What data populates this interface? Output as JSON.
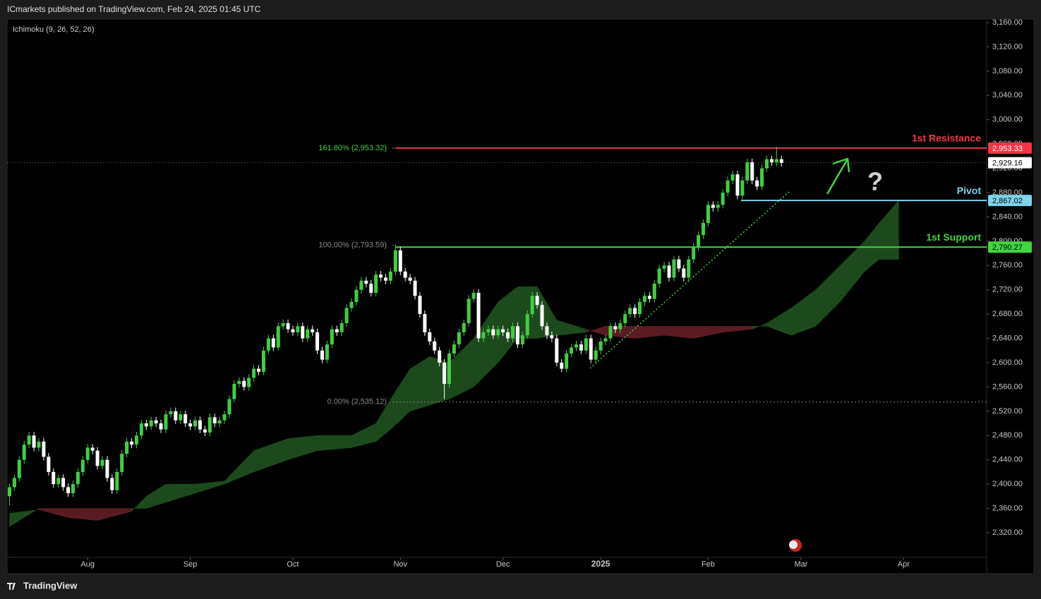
{
  "header": {
    "publisher": "ICmarkets published on TradingView.com, Feb 24, 2025 01:45 UTC",
    "brand": "TradingView"
  },
  "chart_data": {
    "type": "candlestick",
    "indicator": "Ichimoku (9, 26, 52, 26)",
    "up_color": "#3fcf3f",
    "down_color": "#ffffff",
    "open": [
      2380,
      2395,
      2410,
      2440,
      2465,
      2480,
      2460,
      2470,
      2445,
      2420,
      2400,
      2410,
      2395,
      2385,
      2400,
      2420,
      2440,
      2460,
      2455,
      2430,
      2440,
      2410,
      2390,
      2420,
      2450,
      2470,
      2465,
      2480,
      2500,
      2495,
      2505,
      2500,
      2490,
      2515,
      2520,
      2505,
      2515,
      2500,
      2495,
      2505,
      2490,
      2485,
      2510,
      2500,
      2505,
      2515,
      2540,
      2565,
      2570,
      2560,
      2575,
      2590,
      2585,
      2620,
      2640,
      2625,
      2660,
      2665,
      2655,
      2650,
      2660,
      2640,
      2655,
      2650,
      2620,
      2605,
      2630,
      2655,
      2650,
      2665,
      2690,
      2700,
      2720,
      2735,
      2730,
      2715,
      2745,
      2740,
      2735,
      2750,
      2785,
      2750,
      2740,
      2735,
      2710,
      2680,
      2650,
      2635,
      2620,
      2600,
      2565,
      2615,
      2630,
      2650,
      2665,
      2705,
      2715,
      2640,
      2650,
      2655,
      2645,
      2655,
      2650,
      2640,
      2660,
      2630,
      2645,
      2680,
      2710,
      2695,
      2660,
      2645,
      2640,
      2600,
      2590,
      2615,
      2625,
      2630,
      2620,
      2640,
      2605,
      2620,
      2635,
      2640,
      2660,
      2655,
      2665,
      2680,
      2690,
      2680,
      2700,
      2710,
      2705,
      2730,
      2755,
      2760,
      2740,
      2770,
      2755,
      2740,
      2770,
      2790,
      2810,
      2830,
      2860,
      2855,
      2860,
      2880,
      2900,
      2910,
      2875,
      2900,
      2930,
      2900,
      2890,
      2920,
      2935,
      2930,
      2935
    ],
    "high": [
      2401,
      2416,
      2446,
      2471,
      2486,
      2486,
      2476,
      2476,
      2451,
      2426,
      2416,
      2416,
      2401,
      2406,
      2426,
      2446,
      2466,
      2466,
      2461,
      2446,
      2446,
      2416,
      2426,
      2456,
      2476,
      2476,
      2486,
      2506,
      2506,
      2511,
      2511,
      2506,
      2521,
      2526,
      2526,
      2521,
      2521,
      2506,
      2511,
      2511,
      2496,
      2516,
      2516,
      2511,
      2521,
      2546,
      2571,
      2576,
      2576,
      2581,
      2596,
      2596,
      2626,
      2646,
      2646,
      2666,
      2671,
      2671,
      2661,
      2666,
      2666,
      2661,
      2661,
      2656,
      2626,
      2636,
      2661,
      2661,
      2671,
      2696,
      2706,
      2726,
      2741,
      2741,
      2736,
      2751,
      2751,
      2746,
      2756,
      2795,
      2791,
      2756,
      2746,
      2741,
      2716,
      2686,
      2656,
      2641,
      2626,
      2606,
      2621,
      2636,
      2656,
      2671,
      2711,
      2721,
      2721,
      2656,
      2661,
      2661,
      2661,
      2661,
      2656,
      2666,
      2666,
      2651,
      2686,
      2716,
      2716,
      2701,
      2666,
      2651,
      2646,
      2606,
      2621,
      2631,
      2636,
      2636,
      2646,
      2646,
      2626,
      2641,
      2646,
      2666,
      2666,
      2671,
      2686,
      2696,
      2696,
      2706,
      2716,
      2716,
      2736,
      2761,
      2766,
      2766,
      2776,
      2776,
      2761,
      2776,
      2796,
      2816,
      2836,
      2866,
      2866,
      2866,
      2886,
      2906,
      2916,
      2916,
      2906,
      2936,
      2936,
      2906,
      2926,
      2941,
      2941,
      2955,
      2941
    ],
    "low": [
      2365,
      2389,
      2404,
      2434,
      2459,
      2454,
      2454,
      2439,
      2414,
      2394,
      2394,
      2389,
      2379,
      2379,
      2394,
      2414,
      2434,
      2449,
      2424,
      2424,
      2404,
      2384,
      2384,
      2414,
      2444,
      2459,
      2459,
      2474,
      2489,
      2489,
      2494,
      2484,
      2484,
      2509,
      2499,
      2499,
      2494,
      2489,
      2489,
      2484,
      2479,
      2479,
      2494,
      2494,
      2499,
      2509,
      2534,
      2559,
      2554,
      2554,
      2569,
      2579,
      2579,
      2614,
      2619,
      2619,
      2654,
      2649,
      2644,
      2644,
      2634,
      2634,
      2644,
      2614,
      2599,
      2599,
      2624,
      2644,
      2644,
      2659,
      2684,
      2694,
      2714,
      2724,
      2709,
      2709,
      2734,
      2729,
      2729,
      2744,
      2744,
      2734,
      2729,
      2704,
      2674,
      2644,
      2629,
      2614,
      2594,
      2540,
      2559,
      2609,
      2624,
      2644,
      2659,
      2699,
      2634,
      2634,
      2644,
      2639,
      2639,
      2644,
      2634,
      2634,
      2624,
      2624,
      2639,
      2674,
      2689,
      2654,
      2639,
      2634,
      2594,
      2584,
      2584,
      2609,
      2619,
      2614,
      2614,
      2599,
      2599,
      2614,
      2629,
      2634,
      2649,
      2649,
      2659,
      2674,
      2674,
      2674,
      2694,
      2699,
      2699,
      2724,
      2749,
      2734,
      2734,
      2749,
      2734,
      2734,
      2764,
      2784,
      2804,
      2824,
      2849,
      2849,
      2854,
      2874,
      2894,
      2869,
      2869,
      2894,
      2894,
      2884,
      2884,
      2914,
      2924,
      2924,
      2923
    ],
    "close": [
      2395,
      2410,
      2440,
      2465,
      2480,
      2460,
      2470,
      2445,
      2420,
      2400,
      2410,
      2395,
      2385,
      2400,
      2420,
      2440,
      2460,
      2455,
      2430,
      2440,
      2410,
      2390,
      2420,
      2450,
      2470,
      2465,
      2480,
      2500,
      2495,
      2505,
      2500,
      2490,
      2515,
      2520,
      2505,
      2515,
      2500,
      2495,
      2505,
      2490,
      2485,
      2510,
      2500,
      2505,
      2515,
      2540,
      2565,
      2570,
      2560,
      2575,
      2590,
      2585,
      2620,
      2640,
      2625,
      2660,
      2665,
      2655,
      2650,
      2660,
      2640,
      2655,
      2650,
      2620,
      2605,
      2630,
      2655,
      2650,
      2665,
      2690,
      2700,
      2720,
      2735,
      2730,
      2715,
      2745,
      2740,
      2735,
      2750,
      2785,
      2750,
      2740,
      2735,
      2710,
      2680,
      2650,
      2635,
      2620,
      2600,
      2565,
      2615,
      2630,
      2650,
      2665,
      2705,
      2715,
      2640,
      2650,
      2655,
      2645,
      2655,
      2650,
      2640,
      2660,
      2630,
      2645,
      2680,
      2710,
      2695,
      2660,
      2645,
      2640,
      2600,
      2590,
      2615,
      2625,
      2630,
      2620,
      2640,
      2605,
      2620,
      2635,
      2640,
      2660,
      2655,
      2665,
      2680,
      2690,
      2680,
      2700,
      2710,
      2705,
      2730,
      2755,
      2760,
      2740,
      2770,
      2755,
      2740,
      2770,
      2790,
      2810,
      2830,
      2860,
      2855,
      2860,
      2880,
      2900,
      2910,
      2875,
      2900,
      2930,
      2900,
      2890,
      2920,
      2935,
      2930,
      2935,
      2929
    ],
    "ichimoku": {
      "x": [
        0,
        6,
        12,
        18,
        25,
        28,
        32,
        38,
        44,
        50,
        57,
        63,
        70,
        75,
        78,
        82,
        86,
        90,
        95,
        100,
        104,
        108,
        112,
        118,
        122,
        128,
        134,
        140,
        146,
        152,
        155,
        160,
        165,
        170,
        175,
        178,
        182
      ],
      "span_a": [
        2352,
        2358,
        2345,
        2340,
        2355,
        2380,
        2400,
        2400,
        2405,
        2455,
        2475,
        2480,
        2480,
        2500,
        2540,
        2590,
        2610,
        2600,
        2640,
        2700,
        2725,
        2725,
        2670,
        2655,
        2645,
        2640,
        2645,
        2640,
        2650,
        2655,
        2665,
        2690,
        2720,
        2760,
        2800,
        2830,
        2867
      ],
      "span_b": [
        2330,
        2360,
        2360,
        2360,
        2360,
        2360,
        2370,
        2385,
        2400,
        2420,
        2440,
        2455,
        2460,
        2470,
        2490,
        2520,
        2530,
        2540,
        2560,
        2600,
        2640,
        2640,
        2645,
        2650,
        2660,
        2660,
        2660,
        2660,
        2660,
        2660,
        2660,
        2645,
        2660,
        2700,
        2750,
        2770,
        2770
      ],
      "bull_color": "#1c4a1c",
      "bear_color": "#5a1c22"
    },
    "levels": [
      {
        "name": "1st Resistance",
        "value": 2953.33,
        "value_label": "2,953.33",
        "color": "#f23645"
      },
      {
        "name": "Pivot",
        "value": 2867.02,
        "value_label": "2,867.02",
        "color": "#7fd3ea"
      },
      {
        "name": "1st Support",
        "value": 2790.27,
        "value_label": "2,790.27",
        "color": "#3fd63f"
      }
    ],
    "fib": [
      {
        "label": "161.80% (2,953.32)",
        "value": 2953.32,
        "color": "#3fd63f"
      },
      {
        "label": "100.00% (2,793.59)",
        "value": 2793.59,
        "color": "#8a8a8a"
      },
      {
        "label": "0.00% (2,535.12)",
        "value": 2535.12,
        "color": "#8a8a8a"
      }
    ],
    "last_price": {
      "value": 2929.16,
      "value_label": "2,929.16"
    },
    "annotation": "?",
    "xlim": [
      -0.5,
      200
    ],
    "xticks": [
      {
        "value": 16,
        "label": "Aug"
      },
      {
        "value": 37,
        "label": "Sep"
      },
      {
        "value": 58,
        "label": "Oct"
      },
      {
        "value": 80,
        "label": "Nov"
      },
      {
        "value": 101,
        "label": "Dec"
      },
      {
        "value": 121,
        "label": "2025"
      },
      {
        "value": 143,
        "label": "Feb"
      },
      {
        "value": 162,
        "label": "Mar"
      },
      {
        "value": 183,
        "label": "Apr"
      }
    ],
    "ylim": [
      2320,
      3160
    ],
    "yticks": [
      {
        "value": 2320,
        "label": "2,320.00"
      },
      {
        "value": 2360,
        "label": "2,360.00"
      },
      {
        "value": 2400,
        "label": "2,400.00"
      },
      {
        "value": 2440,
        "label": "2,440.00"
      },
      {
        "value": 2480,
        "label": "2,480.00"
      },
      {
        "value": 2520,
        "label": "2,520.00"
      },
      {
        "value": 2560,
        "label": "2,560.00"
      },
      {
        "value": 2600,
        "label": "2,600.00"
      },
      {
        "value": 2640,
        "label": "2,640.00"
      },
      {
        "value": 2680,
        "label": "2,680.00"
      },
      {
        "value": 2720,
        "label": "2,720.00"
      },
      {
        "value": 2760,
        "label": "2,760.00"
      },
      {
        "value": 2800,
        "label": "2,800.00"
      },
      {
        "value": 2840,
        "label": "2,840.00"
      },
      {
        "value": 2880,
        "label": "2,880.00"
      },
      {
        "value": 2920,
        "label": "2,920.00"
      },
      {
        "value": 2960,
        "label": "2,960.00"
      },
      {
        "value": 3000,
        "label": "3,000.00"
      },
      {
        "value": 3040,
        "label": "3,040.00"
      },
      {
        "value": 3080,
        "label": "3,080.00"
      },
      {
        "value": 3120,
        "label": "3,120.00"
      },
      {
        "value": 3160,
        "label": "3,160.00"
      }
    ],
    "grid": false
  }
}
